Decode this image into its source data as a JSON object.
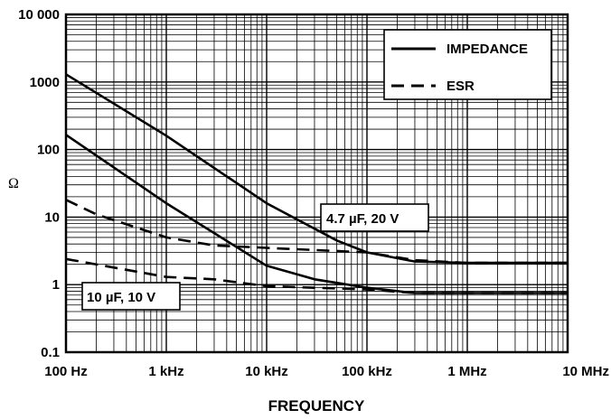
{
  "chart_data": {
    "type": "line",
    "title": "",
    "xlabel": "FREQUENCY",
    "ylabel": "Ω",
    "x_scale": "log",
    "y_scale": "log",
    "xlim": [
      100,
      10000000
    ],
    "ylim": [
      0.1,
      10000
    ],
    "x_tick_labels": [
      "100 Hz",
      "1 kHz",
      "10 kHz",
      "100 kHz",
      "1 MHz",
      "10 MHz"
    ],
    "y_tick_labels": [
      "0.1",
      "1",
      "10",
      "100",
      "1000",
      "10 000"
    ],
    "grid": true,
    "legend_position": "top-right",
    "legend": [
      {
        "label": "IMPEDANCE",
        "style": "solid"
      },
      {
        "label": "ESR",
        "style": "dashed"
      }
    ],
    "annotations": [
      "4.7 µF, 20 V",
      "10 µF, 10 V"
    ],
    "series": [
      {
        "group": "4.7 µF, 20 V",
        "kind": "IMPEDANCE",
        "style": "solid",
        "x": [
          100,
          1000,
          10000,
          50000,
          100000,
          300000,
          1000000,
          10000000
        ],
        "y": [
          1300,
          160,
          16,
          4.5,
          3.0,
          2.2,
          2.1,
          2.1
        ]
      },
      {
        "group": "4.7 µF, 20 V",
        "kind": "ESR",
        "style": "dashed",
        "x": [
          100,
          200,
          1000,
          3000,
          10000,
          100000,
          300000,
          1000000,
          10000000
        ],
        "y": [
          18,
          11,
          5.0,
          3.8,
          3.5,
          3.0,
          2.3,
          2.1,
          2.1
        ]
      },
      {
        "group": "10 µF, 10 V",
        "kind": "IMPEDANCE",
        "style": "solid",
        "x": [
          100,
          1000,
          10000,
          30000,
          100000,
          300000,
          1000000,
          10000000
        ],
        "y": [
          165,
          16,
          1.9,
          1.2,
          0.9,
          0.75,
          0.75,
          0.75
        ]
      },
      {
        "group": "10 µF, 10 V",
        "kind": "ESR",
        "style": "dashed",
        "x": [
          100,
          1000,
          3000,
          10000,
          100000,
          300000,
          1000000,
          10000000
        ],
        "y": [
          2.4,
          1.3,
          1.2,
          0.95,
          0.85,
          0.75,
          0.75,
          0.75
        ]
      }
    ]
  }
}
